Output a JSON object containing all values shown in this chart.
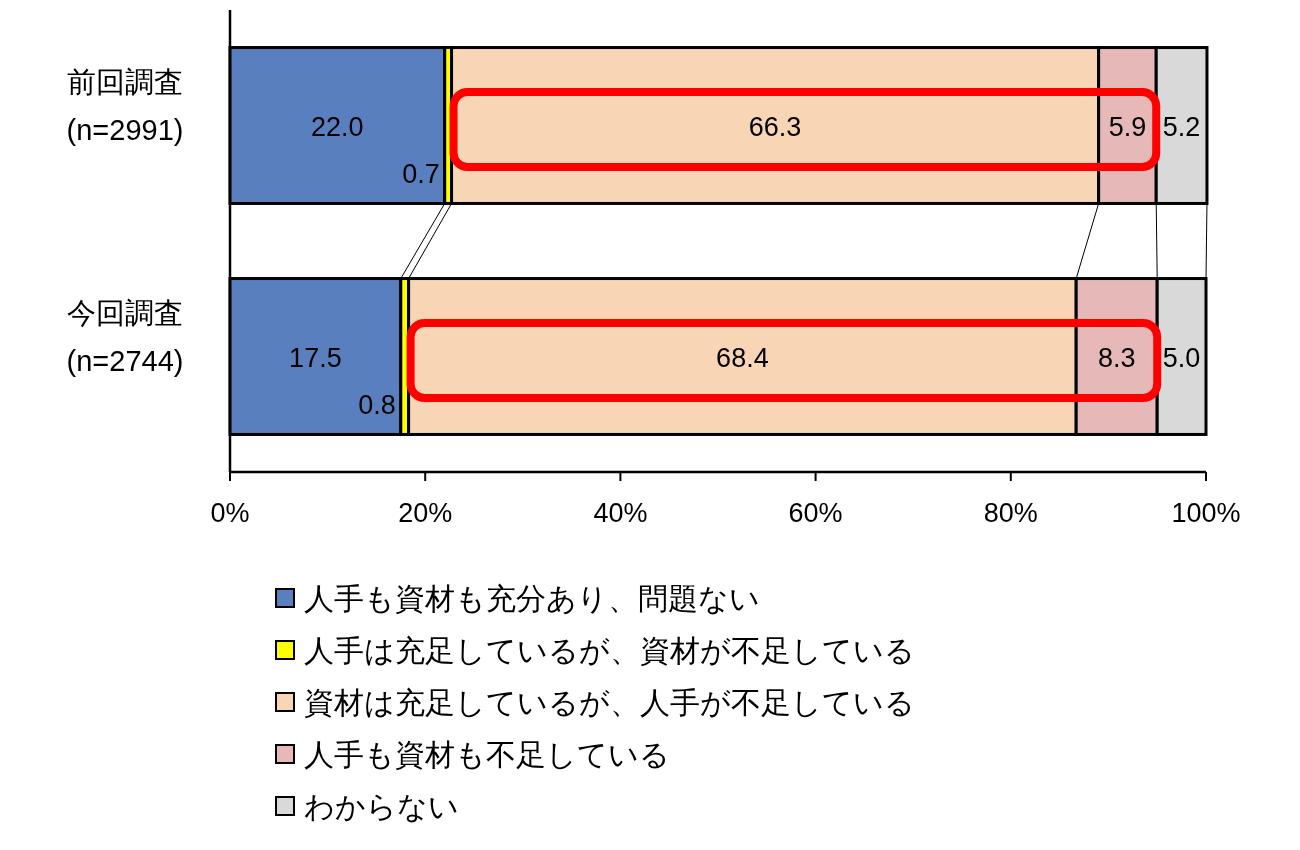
{
  "chart_data": {
    "type": "bar",
    "orientation": "horizontal",
    "stacked": true,
    "categories": [
      "前回調査\n(n=2991)",
      "今回調査\n(n=2744)"
    ],
    "series": [
      {
        "name": "人手も資材も充分あり、問題ない",
        "color": "#5a7fbe",
        "values": [
          22.0,
          17.5
        ],
        "value_labels": [
          "22.0",
          "17.5"
        ]
      },
      {
        "name": "人手は充足しているが、資材が不足している",
        "color": "#ffff00",
        "values": [
          0.7,
          0.8
        ],
        "value_labels": [
          "0.7",
          "0.8"
        ]
      },
      {
        "name": "資材は充足しているが、人手が不足している",
        "color": "#f8d5b4",
        "values": [
          66.3,
          68.4
        ],
        "value_labels": [
          "66.3",
          "68.4"
        ]
      },
      {
        "name": "人手も資材も不足している",
        "color": "#e6b9b8",
        "values": [
          5.9,
          8.3
        ],
        "value_labels": [
          "5.9",
          "8.3"
        ]
      },
      {
        "name": "わからない",
        "color": "#d9d9d9",
        "values": [
          5.2,
          5.0
        ],
        "value_labels": [
          "5.2",
          "5.0"
        ]
      }
    ],
    "xlim": [
      0,
      100
    ],
    "xticks": [
      {
        "value": 0,
        "label": "0%"
      },
      {
        "value": 20,
        "label": "20%"
      },
      {
        "value": 40,
        "label": "40%"
      },
      {
        "value": 60,
        "label": "60%"
      },
      {
        "value": 80,
        "label": "80%"
      },
      {
        "value": 100,
        "label": "100%"
      }
    ],
    "grid": false,
    "legend": "bottom"
  }
}
